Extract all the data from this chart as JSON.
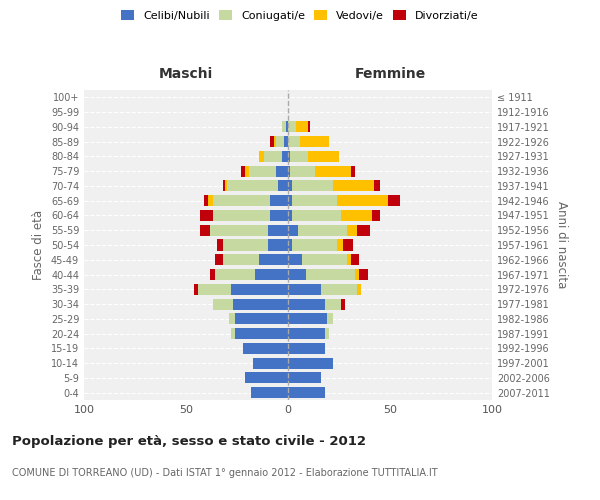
{
  "age_groups": [
    "100+",
    "95-99",
    "90-94",
    "85-89",
    "80-84",
    "75-79",
    "70-74",
    "65-69",
    "60-64",
    "55-59",
    "50-54",
    "45-49",
    "40-44",
    "35-39",
    "30-34",
    "25-29",
    "20-24",
    "15-19",
    "10-14",
    "5-9",
    "0-4"
  ],
  "birth_years": [
    "≤ 1911",
    "1912-1916",
    "1917-1921",
    "1922-1926",
    "1927-1931",
    "1932-1936",
    "1937-1941",
    "1942-1946",
    "1947-1951",
    "1952-1956",
    "1957-1961",
    "1962-1966",
    "1967-1971",
    "1972-1976",
    "1977-1981",
    "1982-1986",
    "1987-1991",
    "1992-1996",
    "1997-2001",
    "2002-2006",
    "2007-2011"
  ],
  "maschi": {
    "celibi": [
      0,
      0,
      1,
      2,
      3,
      6,
      5,
      9,
      9,
      10,
      10,
      14,
      16,
      28,
      27,
      26,
      26,
      22,
      17,
      21,
      18
    ],
    "coniugati": [
      0,
      0,
      2,
      4,
      9,
      13,
      25,
      28,
      28,
      28,
      22,
      18,
      20,
      16,
      10,
      3,
      2,
      0,
      0,
      0,
      0
    ],
    "vedovi": [
      0,
      0,
      0,
      1,
      2,
      2,
      1,
      2,
      0,
      0,
      0,
      0,
      0,
      0,
      0,
      0,
      0,
      0,
      0,
      0,
      0
    ],
    "divorziati": [
      0,
      0,
      0,
      2,
      0,
      2,
      1,
      2,
      6,
      5,
      3,
      4,
      2,
      2,
      0,
      0,
      0,
      0,
      0,
      0,
      0
    ]
  },
  "femmine": {
    "nubili": [
      0,
      0,
      0,
      0,
      1,
      1,
      2,
      2,
      2,
      5,
      2,
      7,
      9,
      16,
      18,
      19,
      18,
      18,
      22,
      16,
      18
    ],
    "coniugate": [
      0,
      0,
      4,
      6,
      9,
      12,
      20,
      22,
      24,
      24,
      22,
      22,
      24,
      18,
      8,
      3,
      2,
      0,
      0,
      0,
      0
    ],
    "vedove": [
      0,
      0,
      6,
      14,
      15,
      18,
      20,
      25,
      15,
      5,
      3,
      2,
      2,
      2,
      0,
      0,
      0,
      0,
      0,
      0,
      0
    ],
    "divorziate": [
      0,
      0,
      1,
      0,
      0,
      2,
      3,
      6,
      4,
      6,
      5,
      4,
      4,
      0,
      2,
      0,
      0,
      0,
      0,
      0,
      0
    ]
  },
  "color_celibi": "#4472c4",
  "color_coniugati": "#c5d9a0",
  "color_vedovi": "#ffc000",
  "color_divorziati": "#c0000a",
  "xlim": 100,
  "title": "Popolazione per età, sesso e stato civile - 2012",
  "subtitle": "COMUNE DI TORREANO (UD) - Dati ISTAT 1° gennaio 2012 - Elaborazione TUTTITALIA.IT",
  "ylabel_left": "Fasce di età",
  "ylabel_right": "Anni di nascita",
  "xlabel_left": "Maschi",
  "xlabel_right": "Femmine",
  "bg_color": "#ffffff",
  "plot_bg": "#f0f0f0"
}
